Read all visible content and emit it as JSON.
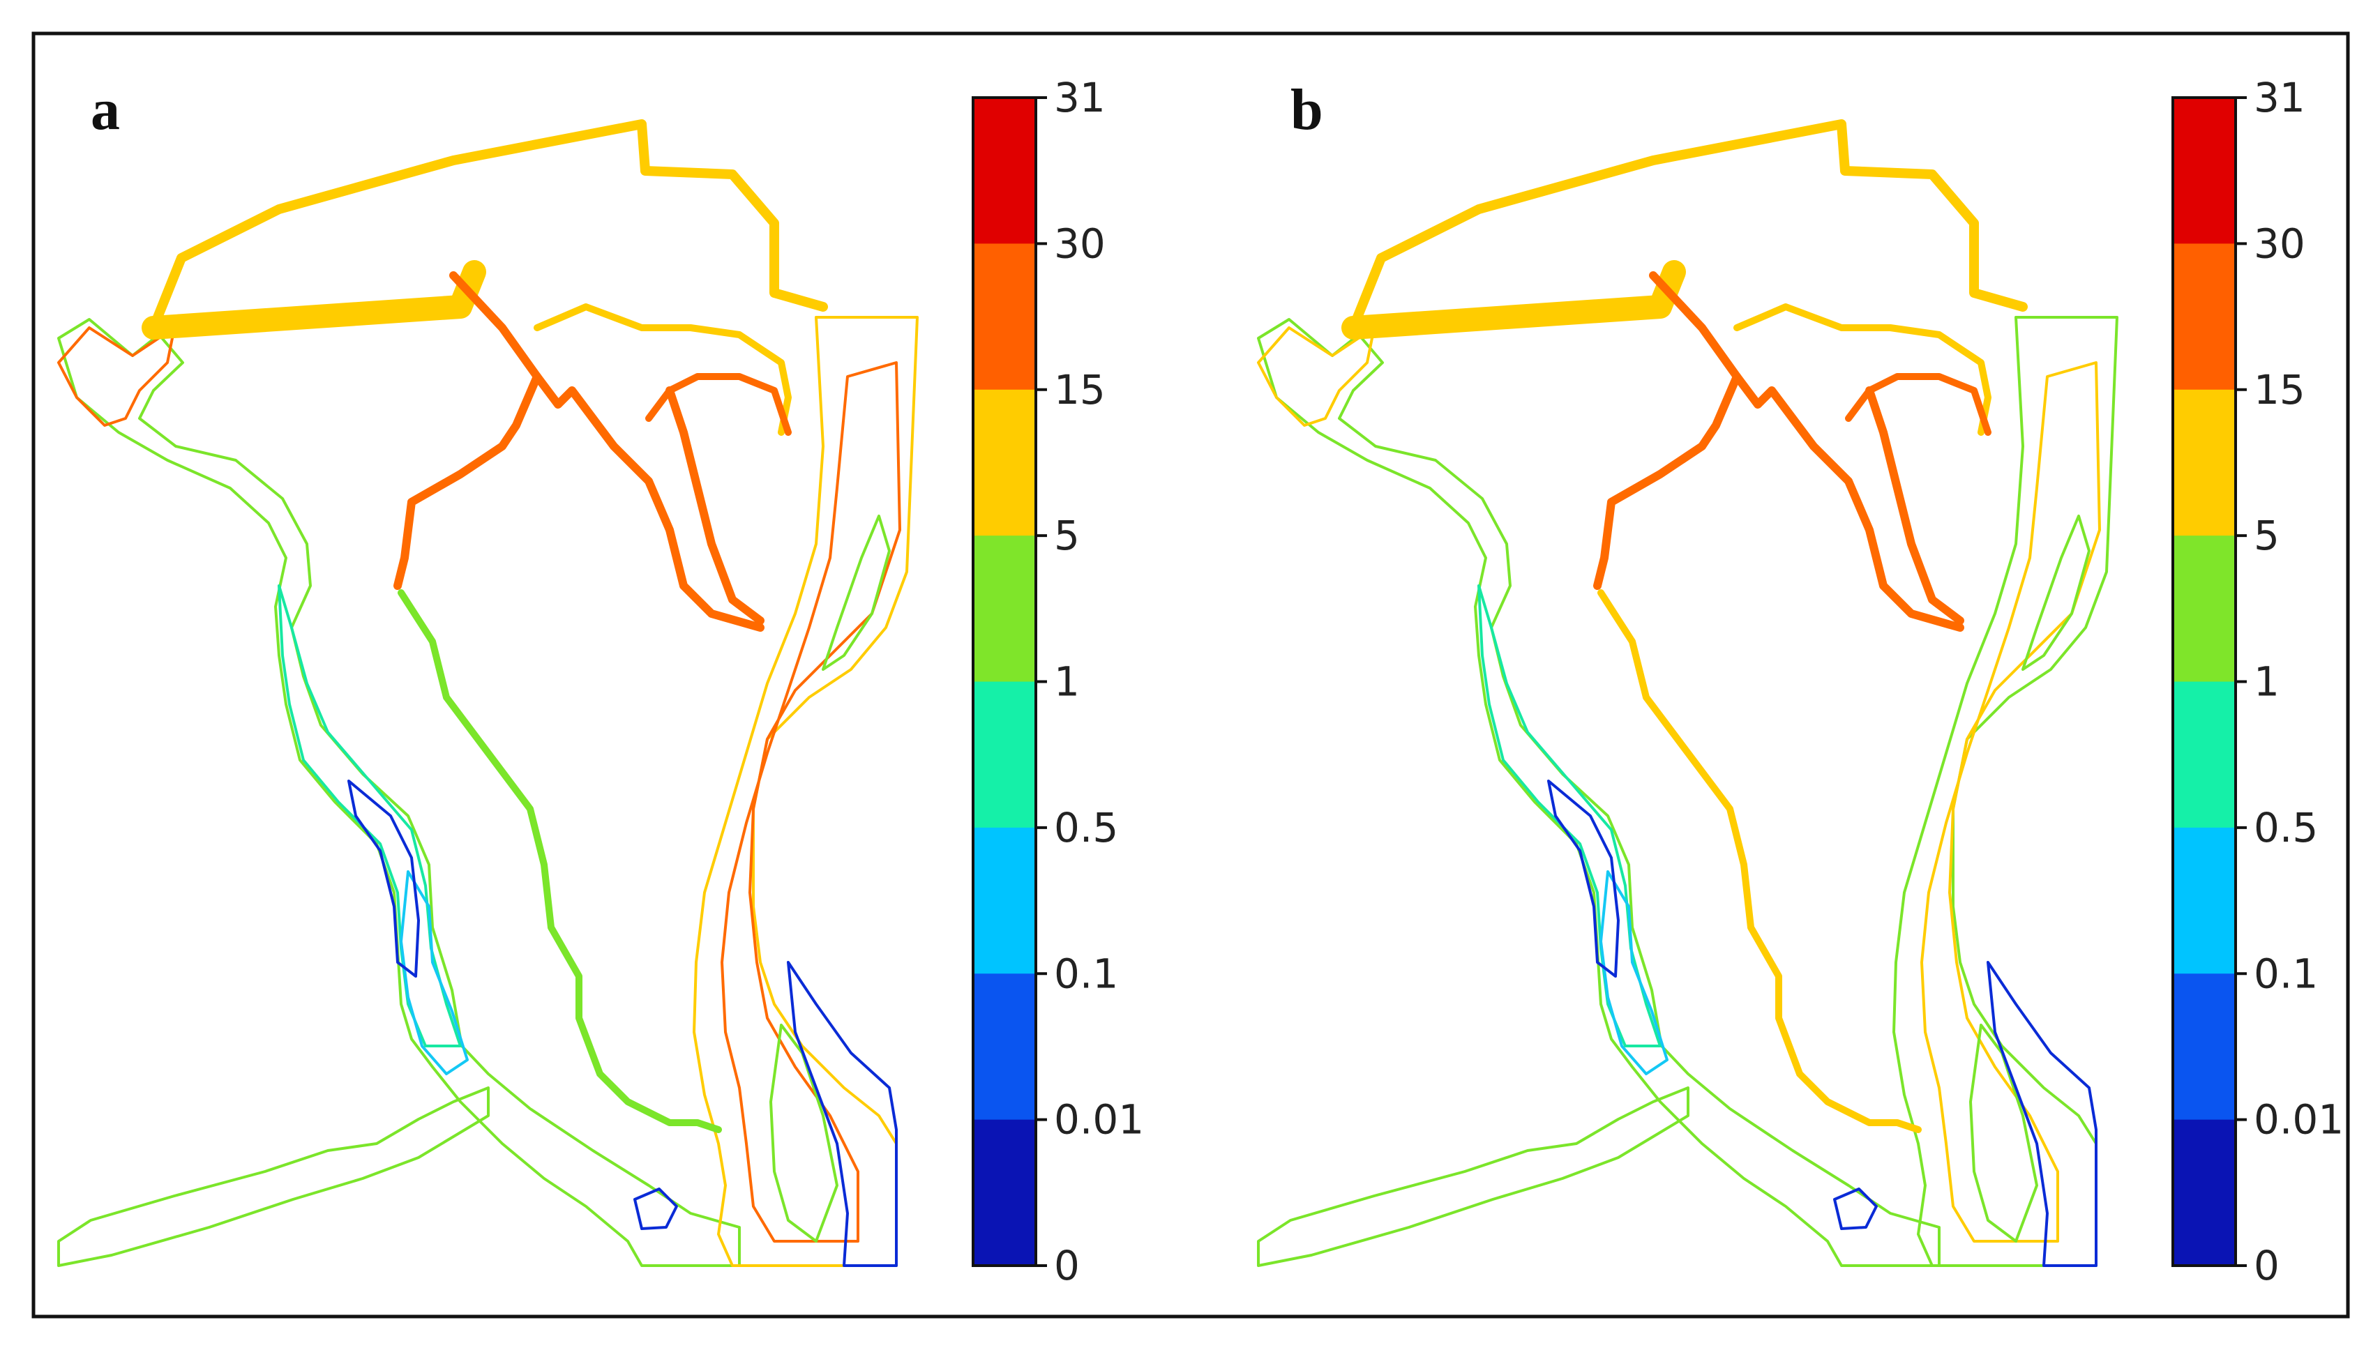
{
  "panels": [
    {
      "letter": "a",
      "colors": {
        "west_channel_outer": "#7be52a",
        "west_channel_mid": "#17e8a2",
        "west_channel_low": "#14c8f4",
        "west_pocket": "#0a2bd6",
        "east_river_main": "#ff6a00",
        "east_river_edge": "#ffcc00",
        "east_river_green": "#7be52a",
        "east_bank_low": "#0a2bd6",
        "network_north": "#ffcc00",
        "network_inner": "#ff6a00",
        "network_south": "#7be52a",
        "northwest_arm": "#ff6a00",
        "southwest_inlet": "#7be52a"
      }
    },
    {
      "letter": "b",
      "colors": {
        "west_channel_outer": "#7be52a",
        "west_channel_mid": "#17e8a2",
        "west_channel_low": "#14c8f4",
        "west_pocket": "#0a2bd6",
        "east_river_main": "#ffcc00",
        "east_river_edge": "#7be52a",
        "east_river_green": "#7be52a",
        "east_bank_low": "#0a2bd6",
        "network_north": "#ffcc00",
        "network_inner": "#ff6a00",
        "network_south": "#ffcc00",
        "northwest_arm": "#ffcc00",
        "southwest_inlet": "#7be52a"
      }
    }
  ],
  "colorbar": {
    "ticks": [
      "31",
      "30",
      "15",
      "5",
      "1",
      "0.5",
      "0.1",
      "0.01",
      "0"
    ],
    "colors": [
      "#e00000",
      "#ff6000",
      "#ffcc00",
      "#7fe52a",
      "#15f0a8",
      "#00c4ff",
      "#0a55f0",
      "#0a14b4"
    ]
  }
}
